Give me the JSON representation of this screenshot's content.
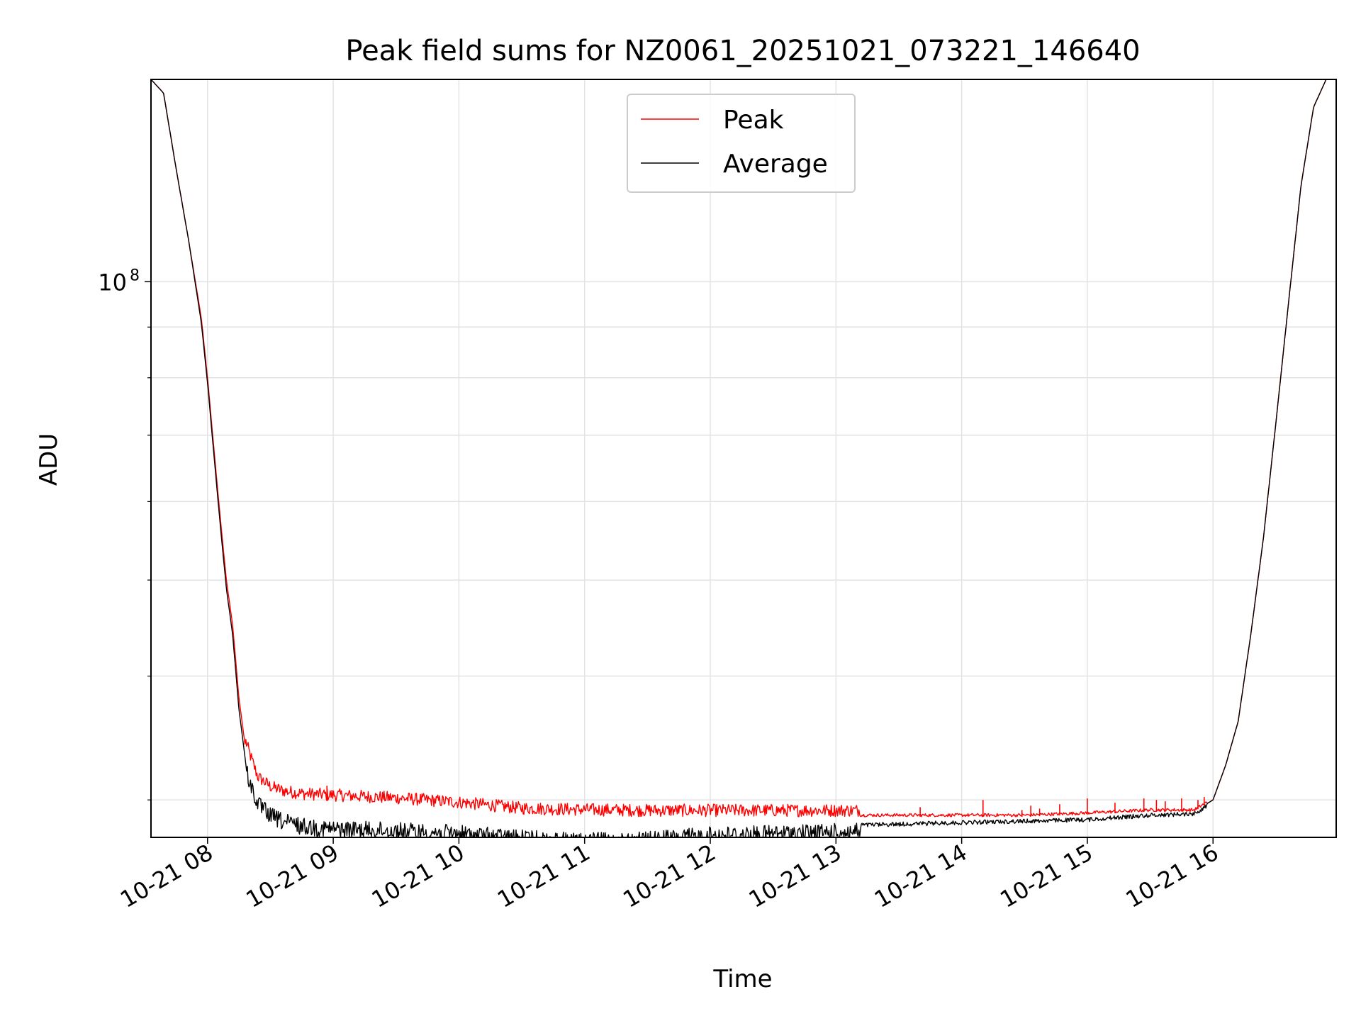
{
  "chart_data": {
    "type": "line",
    "title": "Peak field sums for NZ0061_20251021_073221_146640",
    "xlabel": "Time",
    "ylabel": "ADU",
    "yscale": "log",
    "grid": true,
    "legend_position": "top-center",
    "x_unit": "hours since 2025-10-21 00:00",
    "xlim": [
      7.55,
      16.98
    ],
    "ylim": [
      27500000,
      160000000
    ],
    "x_ticks": [
      {
        "value": 8,
        "label": "10-21 08"
      },
      {
        "value": 9,
        "label": "10-21 09"
      },
      {
        "value": 10,
        "label": "10-21 10"
      },
      {
        "value": 11,
        "label": "10-21 11"
      },
      {
        "value": 12,
        "label": "10-21 12"
      },
      {
        "value": 13,
        "label": "10-21 13"
      },
      {
        "value": 14,
        "label": "10-21 14"
      },
      {
        "value": 15,
        "label": "10-21 15"
      },
      {
        "value": 16,
        "label": "10-21 16"
      }
    ],
    "y_major_ticks": [
      {
        "value": 100000000,
        "label_base": "10",
        "label_exp": "8"
      }
    ],
    "y_minor_ticks": [
      30000000,
      40000000,
      50000000,
      60000000,
      70000000,
      80000000,
      90000000,
      200000000
    ],
    "series": [
      {
        "name": "Peak",
        "color": "#ff0000",
        "noise_fraction": 0.03,
        "x": [
          7.55,
          7.65,
          7.75,
          7.85,
          7.95,
          8.0,
          8.05,
          8.1,
          8.15,
          8.2,
          8.25,
          8.3,
          8.35,
          8.4,
          8.5,
          8.6,
          8.75,
          9.0,
          9.5,
          10.0,
          10.5,
          11.0,
          11.5,
          12.0,
          12.5,
          13.0,
          13.5,
          14.0,
          14.5,
          15.0,
          15.5,
          15.85,
          16.0,
          16.1,
          16.2,
          16.3,
          16.4,
          16.5,
          16.6,
          16.7,
          16.8,
          16.9,
          16.98
        ],
        "y": [
          160000000,
          155000000,
          130000000,
          110000000,
          92000000,
          80000000,
          68000000,
          58000000,
          50000000,
          45000000,
          38000000,
          34000000,
          32500000,
          31200000,
          30500000,
          30200000,
          30000000,
          29900000,
          29700000,
          29400000,
          29000000,
          28900000,
          28850000,
          28850000,
          28850000,
          28850000,
          28850000,
          28850000,
          28850000,
          29000000,
          29200000,
          29200000,
          30000000,
          32500000,
          36000000,
          44000000,
          55000000,
          72000000,
          95000000,
          125000000,
          150000000,
          160000000,
          160000000
        ],
        "spikes": [
          {
            "x": 8.95,
            "y": 31000000
          },
          {
            "x": 13.67,
            "y": 29500000
          },
          {
            "x": 14.17,
            "y": 30000000
          },
          {
            "x": 14.48,
            "y": 29300000
          },
          {
            "x": 14.55,
            "y": 29600000
          },
          {
            "x": 14.62,
            "y": 29400000
          },
          {
            "x": 14.78,
            "y": 29700000
          },
          {
            "x": 15.0,
            "y": 30100000
          },
          {
            "x": 15.22,
            "y": 29800000
          },
          {
            "x": 15.45,
            "y": 30100000
          },
          {
            "x": 15.55,
            "y": 30000000
          },
          {
            "x": 15.62,
            "y": 29900000
          },
          {
            "x": 15.75,
            "y": 30100000
          },
          {
            "x": 15.88,
            "y": 30000000
          },
          {
            "x": 15.93,
            "y": 30200000
          }
        ]
      },
      {
        "name": "Average",
        "color": "#000000",
        "noise_fraction": 0.04,
        "x": [
          7.55,
          7.65,
          7.75,
          7.85,
          7.95,
          8.0,
          8.05,
          8.1,
          8.15,
          8.2,
          8.25,
          8.3,
          8.35,
          8.4,
          8.5,
          8.6,
          8.75,
          9.0,
          9.5,
          10.0,
          10.5,
          11.0,
          11.5,
          12.0,
          12.5,
          13.0,
          13.5,
          14.0,
          14.5,
          15.0,
          15.5,
          15.85,
          16.0,
          16.1,
          16.2,
          16.3,
          16.4,
          16.5,
          16.6,
          16.7,
          16.8,
          16.9,
          16.98
        ],
        "y": [
          160000000,
          155000000,
          130000000,
          110000000,
          91000000,
          79000000,
          67000000,
          57000000,
          49000000,
          44000000,
          37000000,
          33000000,
          31500000,
          30300000,
          29500000,
          29100000,
          28800000,
          28600000,
          28500000,
          28300000,
          28000000,
          27800000,
          27900000,
          28200000,
          28300000,
          28400000,
          28500000,
          28600000,
          28700000,
          28800000,
          29100000,
          29200000,
          30000000,
          32500000,
          36000000,
          44000000,
          55000000,
          72000000,
          95000000,
          125000000,
          150000000,
          160000000,
          160000000
        ]
      }
    ]
  }
}
